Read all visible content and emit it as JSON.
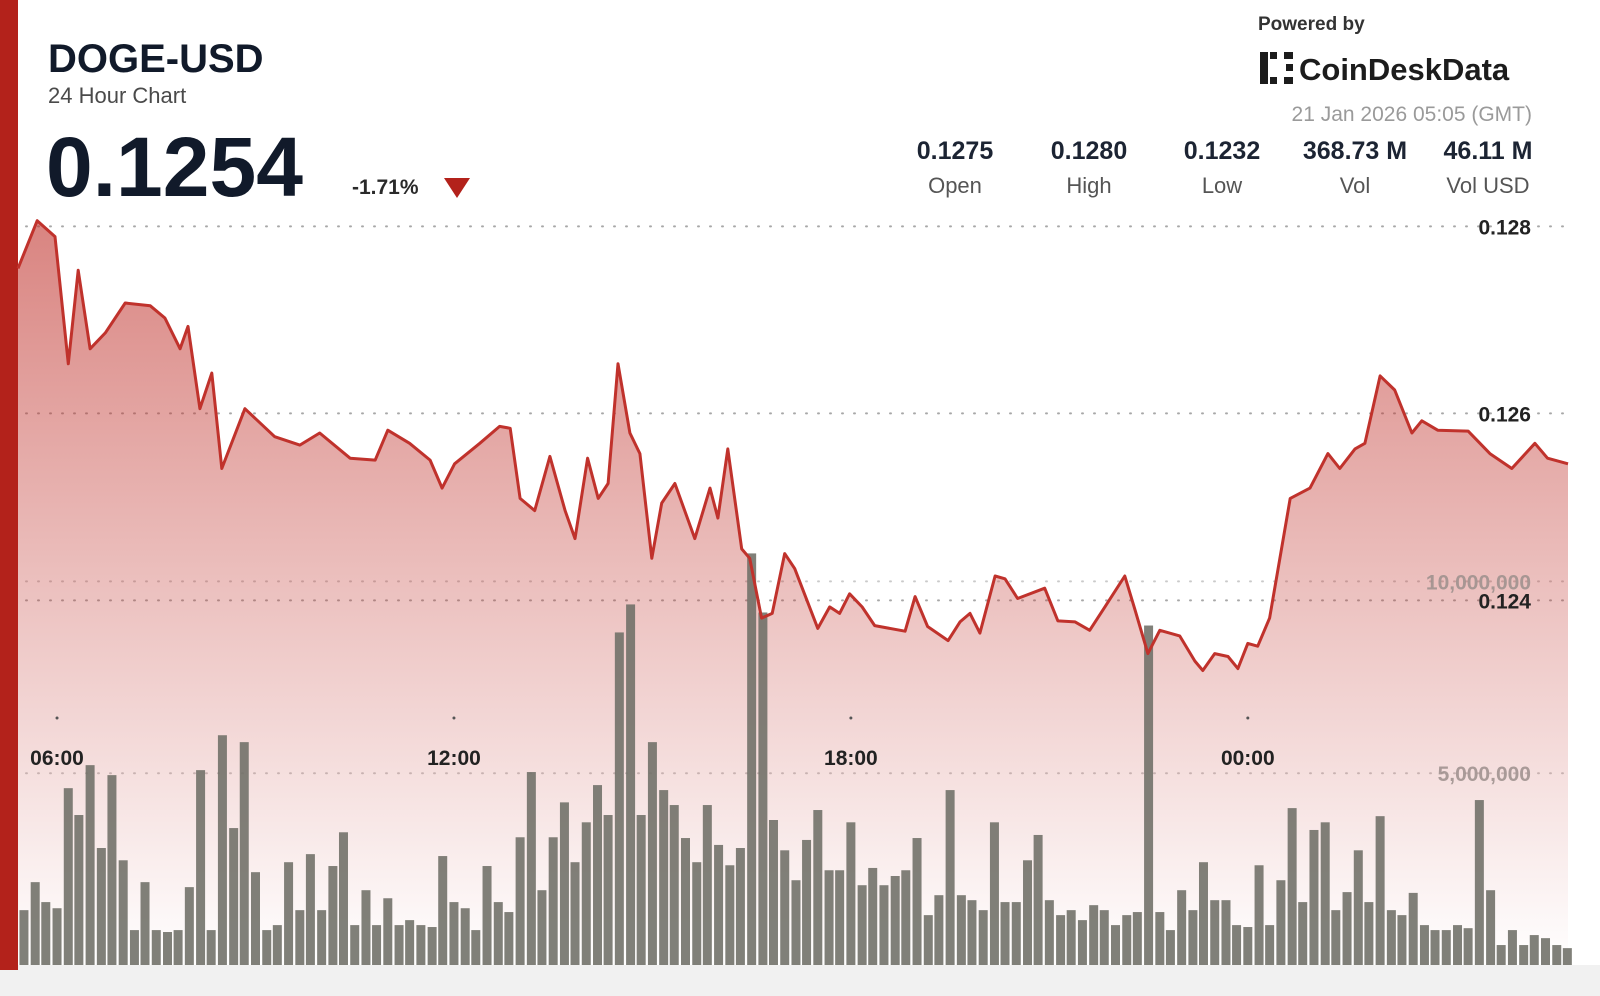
{
  "header": {
    "symbol": "DOGE-USD",
    "subtitle": "24 Hour Chart",
    "price": "0.1254",
    "change": "-1.71%",
    "powered_by": "Powered by",
    "brand": "CoinDeskData",
    "timestamp": "21 Jan 2026 05:05 (GMT)",
    "stats": [
      {
        "value": "0.1275",
        "label": "Open"
      },
      {
        "value": "0.1280",
        "label": "High"
      },
      {
        "value": "0.1232",
        "label": "Low"
      },
      {
        "value": "368.73 M",
        "label": "Vol"
      },
      {
        "value": "46.11 M",
        "label": "Vol USD"
      }
    ]
  },
  "chart_data": {
    "type": "line",
    "grid": true,
    "xlim": [
      5.41,
      28.84
    ],
    "xticks": [
      {
        "value": 6,
        "label": "06:00"
      },
      {
        "value": 12,
        "label": "12:00"
      },
      {
        "value": 18,
        "label": "18:00"
      },
      {
        "value": 24,
        "label": "00:00"
      }
    ],
    "ylim": [
      0.1201,
      0.1281
    ],
    "yticks": [
      0.124,
      0.126,
      0.128
    ],
    "y2lim": [
      0,
      19500000
    ],
    "y2ticks": [
      {
        "value": 5000000,
        "label": "5,000,000"
      },
      {
        "value": 10000000,
        "label": "10,000,000"
      }
    ],
    "series": [
      {
        "type": "bar",
        "axis": "y2",
        "color": "#6e6e66",
        "x": [
          5.5,
          5.67,
          5.83,
          6,
          6.17,
          6.33,
          6.5,
          6.67,
          6.83,
          7,
          7.17,
          7.33,
          7.5,
          7.67,
          7.83,
          8,
          8.17,
          8.33,
          8.5,
          8.67,
          8.83,
          9,
          9.17,
          9.33,
          9.5,
          9.67,
          9.83,
          10,
          10.17,
          10.33,
          10.5,
          10.67,
          10.83,
          11,
          11.17,
          11.33,
          11.5,
          11.67,
          11.83,
          12,
          12.17,
          12.33,
          12.5,
          12.67,
          12.83,
          13,
          13.17,
          13.33,
          13.5,
          13.67,
          13.83,
          14,
          14.17,
          14.33,
          14.5,
          14.67,
          14.83,
          15,
          15.17,
          15.33,
          15.5,
          15.67,
          15.83,
          16,
          16.17,
          16.33,
          16.5,
          16.67,
          16.83,
          17,
          17.17,
          17.33,
          17.5,
          17.67,
          17.83,
          18,
          18.17,
          18.33,
          18.5,
          18.67,
          18.83,
          19,
          19.17,
          19.33,
          19.5,
          19.67,
          19.83,
          20,
          20.17,
          20.33,
          20.5,
          20.67,
          20.83,
          21,
          21.17,
          21.33,
          21.5,
          21.67,
          21.83,
          22,
          22.17,
          22.33,
          22.5,
          22.67,
          22.83,
          23,
          23.17,
          23.33,
          23.5,
          23.67,
          23.83,
          24,
          24.17,
          24.33,
          24.5,
          24.67,
          24.83,
          25,
          25.17,
          25.33,
          25.5,
          25.67,
          25.83,
          26,
          26.17,
          26.33,
          26.5,
          26.67,
          26.83,
          27,
          27.17,
          27.33,
          27.5,
          27.67,
          27.83,
          28,
          28.17,
          28.33,
          28.5,
          28.67,
          28.83
        ],
        "values": [
          1430000,
          2160000,
          1640000,
          1480000,
          4610000,
          3910000,
          5210000,
          3050000,
          4950000,
          2730000,
          910000,
          2160000,
          910000,
          860000,
          910000,
          2030000,
          5080000,
          910000,
          5990000,
          3570000,
          5810000,
          2420000,
          910000,
          1040000,
          2680000,
          1430000,
          2890000,
          1430000,
          2580000,
          3460000,
          1040000,
          1950000,
          1040000,
          1740000,
          1040000,
          1170000,
          1040000,
          990000,
          2840000,
          1640000,
          1480000,
          910000,
          2580000,
          1640000,
          1380000,
          3330000,
          5030000,
          1950000,
          3330000,
          4240000,
          2680000,
          3720000,
          4690000,
          3910000,
          8670000,
          9400000,
          3910000,
          5810000,
          4560000,
          4170000,
          3310000,
          2680000,
          4170000,
          3130000,
          2600000,
          3050000,
          10730000,
          9190000,
          3780000,
          2990000,
          2210000,
          3260000,
          4040000,
          2470000,
          2470000,
          3720000,
          2080000,
          2530000,
          2080000,
          2320000,
          2470000,
          3310000,
          1300000,
          1820000,
          4560000,
          1820000,
          1690000,
          1430000,
          3720000,
          1640000,
          1640000,
          2730000,
          3390000,
          1690000,
          1300000,
          1430000,
          1170000,
          1560000,
          1430000,
          1040000,
          1300000,
          1380000,
          8850000,
          1380000,
          910000,
          1950000,
          1430000,
          2680000,
          1690000,
          1690000,
          1040000,
          990000,
          2600000,
          1040000,
          2210000,
          4090000,
          1640000,
          3520000,
          3720000,
          1430000,
          1900000,
          2990000,
          1640000,
          3880000,
          1430000,
          1300000,
          1880000,
          1040000,
          910000,
          910000,
          1040000,
          960000,
          4300000,
          1950000,
          520000,
          910000,
          520000,
          780000,
          700000,
          520000,
          440000
        ]
      },
      {
        "type": "line",
        "color": "#c0322c",
        "x": [
          5.41,
          5.7,
          5.97,
          6.17,
          6.32,
          6.5,
          6.73,
          7.03,
          7.41,
          7.63,
          7.86,
          7.98,
          8.16,
          8.34,
          8.49,
          8.84,
          9.29,
          9.67,
          9.97,
          10.43,
          10.81,
          11,
          11.33,
          11.64,
          11.82,
          12.01,
          12.39,
          12.69,
          12.85,
          13,
          13.22,
          13.45,
          13.68,
          13.83,
          14.02,
          14.18,
          14.33,
          14.48,
          14.66,
          14.81,
          14.99,
          15.14,
          15.34,
          15.64,
          15.87,
          15.99,
          16.14,
          16.35,
          16.47,
          16.65,
          16.81,
          17,
          17.15,
          17.5,
          17.68,
          17.83,
          17.98,
          18.17,
          18.36,
          18.82,
          18.97,
          19.16,
          19.47,
          19.65,
          19.8,
          19.95,
          20.18,
          20.33,
          20.52,
          20.93,
          21.13,
          21.39,
          21.61,
          21.84,
          22.14,
          22.29,
          22.49,
          22.67,
          22.97,
          23.2,
          23.32,
          23.5,
          23.7,
          23.85,
          24,
          24.15,
          24.33,
          24.64,
          24.94,
          25.21,
          25.39,
          25.62,
          25.77,
          26,
          26.22,
          26.48,
          26.63,
          26.87,
          27.33,
          27.66,
          27.99,
          28.34,
          28.53,
          28.84
        ],
        "values": [
          0.12755,
          0.12806,
          0.12789,
          0.12653,
          0.12753,
          0.12669,
          0.12686,
          0.12718,
          0.12715,
          0.12702,
          0.12669,
          0.12693,
          0.12605,
          0.12643,
          0.12541,
          0.12605,
          0.12575,
          0.12566,
          0.12579,
          0.12552,
          0.1255,
          0.12582,
          0.12568,
          0.1255,
          0.1252,
          0.12546,
          0.12568,
          0.12586,
          0.12584,
          0.12509,
          0.12496,
          0.12554,
          0.12496,
          0.12466,
          0.12552,
          0.12509,
          0.12525,
          0.12653,
          0.12579,
          0.12557,
          0.12445,
          0.12504,
          0.12525,
          0.12466,
          0.1252,
          0.12488,
          0.12562,
          0.12455,
          0.12445,
          0.12381,
          0.12386,
          0.1245,
          0.12434,
          0.1237,
          0.12393,
          0.12386,
          0.12407,
          0.12393,
          0.12373,
          0.12367,
          0.12404,
          0.12372,
          0.12357,
          0.12377,
          0.12386,
          0.12365,
          0.12426,
          0.12423,
          0.12402,
          0.12413,
          0.12378,
          0.12377,
          0.12368,
          0.12393,
          0.12426,
          0.12391,
          0.12343,
          0.12368,
          0.12362,
          0.12335,
          0.12325,
          0.12343,
          0.1234,
          0.12327,
          0.12354,
          0.12351,
          0.12381,
          0.12509,
          0.1252,
          0.12557,
          0.12541,
          0.12562,
          0.12568,
          0.1264,
          0.12625,
          0.12579,
          0.12592,
          0.12582,
          0.12581,
          0.12557,
          0.12541,
          0.12568,
          0.12552,
          0.12546
        ]
      }
    ]
  }
}
